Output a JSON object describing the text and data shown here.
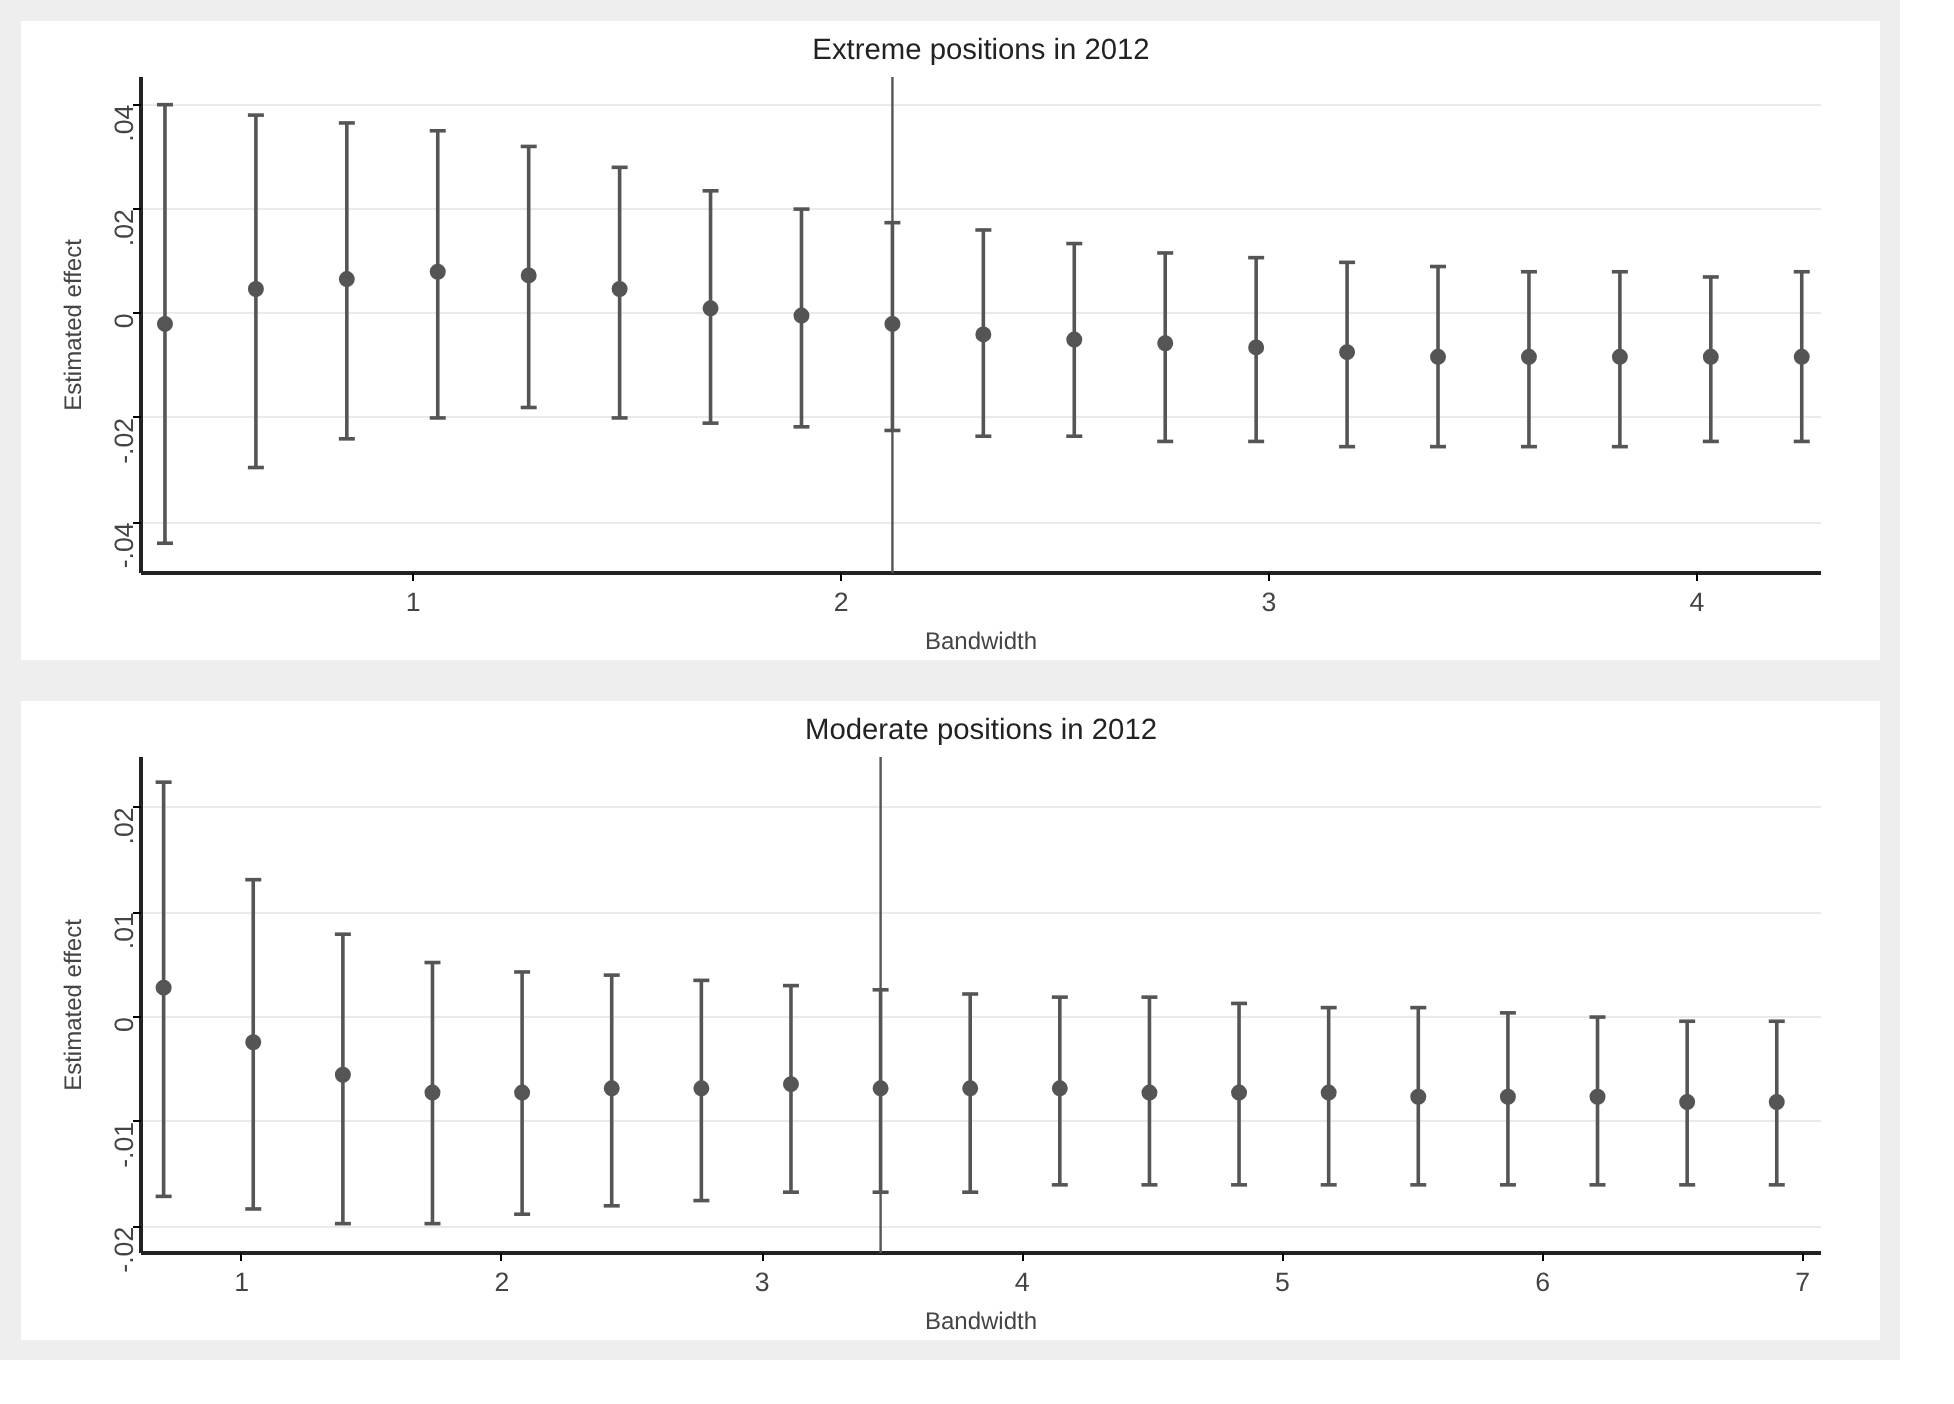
{
  "chart_data": [
    {
      "type": "scatter",
      "title": "Extreme positions in 2012",
      "xlabel": "Bandwidth",
      "ylabel": "Estimated effect",
      "x": [
        0.42,
        0.6325,
        0.845,
        1.0575,
        1.27,
        1.4825,
        1.695,
        1.9075,
        2.12,
        2.3325,
        2.545,
        2.7575,
        2.97,
        3.1825,
        3.395,
        3.6075,
        3.82,
        4.0325,
        4.245
      ],
      "series": [
        {
          "color": "#555555",
          "values": [
            -0.002,
            0.0047,
            0.0066,
            0.008,
            0.0073,
            0.0047,
            0.001,
            -0.0004,
            -0.002,
            -0.004,
            -0.005,
            -0.0057,
            -0.0065,
            -0.0074,
            -0.0083,
            -0.0083,
            -0.0083,
            -0.0083,
            -0.0083
          ],
          "errors": [
            [
              -0.044,
              0.04
            ],
            [
              -0.0295,
              0.038
            ],
            [
              -0.024,
              0.0365
            ],
            [
              -0.02,
              0.035
            ],
            [
              -0.018,
              0.032
            ],
            [
              -0.02,
              0.028
            ],
            [
              -0.021,
              0.0235
            ],
            [
              -0.0217,
              0.02
            ],
            [
              -0.0224,
              0.0174
            ],
            [
              -0.0235,
              0.016
            ],
            [
              -0.0235,
              0.0134
            ],
            [
              -0.0245,
              0.0116
            ],
            [
              -0.0245,
              0.0107
            ],
            [
              -0.0255,
              0.0098
            ],
            [
              -0.0255,
              0.009
            ],
            [
              -0.0255,
              0.008
            ],
            [
              -0.0255,
              0.008
            ],
            [
              -0.0245,
              0.007
            ],
            [
              -0.0245,
              0.008
            ]
          ]
        }
      ],
      "xlim": [
        0.364,
        4.29
      ],
      "ylim": [
        -0.0497,
        0.0453
      ],
      "xticks": [
        1,
        2,
        3,
        4
      ],
      "yticks": [
        {
          "value": -0.04,
          "label": "-.04"
        },
        {
          "value": -0.02,
          "label": "-.02"
        },
        0,
        {
          "value": 0.02,
          "label": ".02"
        },
        {
          "value": 0.04,
          "label": ".04"
        }
      ],
      "ref_lines": [
        {
          "axis": "x",
          "value": 2.12,
          "color": "#555555"
        }
      ],
      "grid": "y",
      "marker": "circle"
    },
    {
      "type": "scatter",
      "title": "Moderate positions in 2012",
      "xlabel": "Bandwidth",
      "ylabel": "Estimated effect",
      "x": [
        0.7,
        1.0444,
        1.3889,
        1.7333,
        2.0778,
        2.4222,
        2.7667,
        3.1111,
        3.4556,
        3.8,
        4.1444,
        4.4889,
        4.8333,
        5.1778,
        5.5222,
        5.8667,
        6.2111,
        6.5556,
        6.9
      ],
      "series": [
        {
          "color": "#555555",
          "values": [
            0.0028,
            -0.0024,
            -0.0055,
            -0.0072,
            -0.0072,
            -0.0068,
            -0.0068,
            -0.0064,
            -0.0068,
            -0.0068,
            -0.0068,
            -0.0072,
            -0.0072,
            -0.0072,
            -0.0076,
            -0.0076,
            -0.0076,
            -0.0081,
            -0.0081
          ],
          "errors": [
            [
              -0.0171,
              0.0224
            ],
            [
              -0.0183,
              0.0131
            ],
            [
              -0.0197,
              0.0079
            ],
            [
              -0.0197,
              0.0052
            ],
            [
              -0.0188,
              0.0043
            ],
            [
              -0.018,
              0.004
            ],
            [
              -0.0175,
              0.0035
            ],
            [
              -0.0167,
              0.003
            ],
            [
              -0.0167,
              0.0026
            ],
            [
              -0.0167,
              0.0022
            ],
            [
              -0.016,
              0.0019
            ],
            [
              -0.016,
              0.0019
            ],
            [
              -0.016,
              0.0013
            ],
            [
              -0.016,
              0.0009
            ],
            [
              -0.016,
              0.0009
            ],
            [
              -0.016,
              0.0004
            ],
            [
              -0.016,
              0.0
            ],
            [
              -0.016,
              -0.0004
            ],
            [
              -0.016,
              -0.0004
            ]
          ]
        }
      ],
      "xlim": [
        0.613,
        7.07
      ],
      "ylim": [
        -0.0225,
        0.0248
      ],
      "xticks": [
        1,
        2,
        3,
        4,
        5,
        6,
        7
      ],
      "yticks": [
        {
          "value": -0.02,
          "label": "-.02"
        },
        {
          "value": -0.01,
          "label": "-.01"
        },
        0,
        {
          "value": 0.01,
          "label": ".01"
        },
        {
          "value": 0.02,
          "label": ".02"
        }
      ],
      "ref_lines": [
        {
          "axis": "x",
          "value": 3.4556,
          "color": "#555555"
        }
      ],
      "grid": "y",
      "marker": "circle"
    }
  ]
}
